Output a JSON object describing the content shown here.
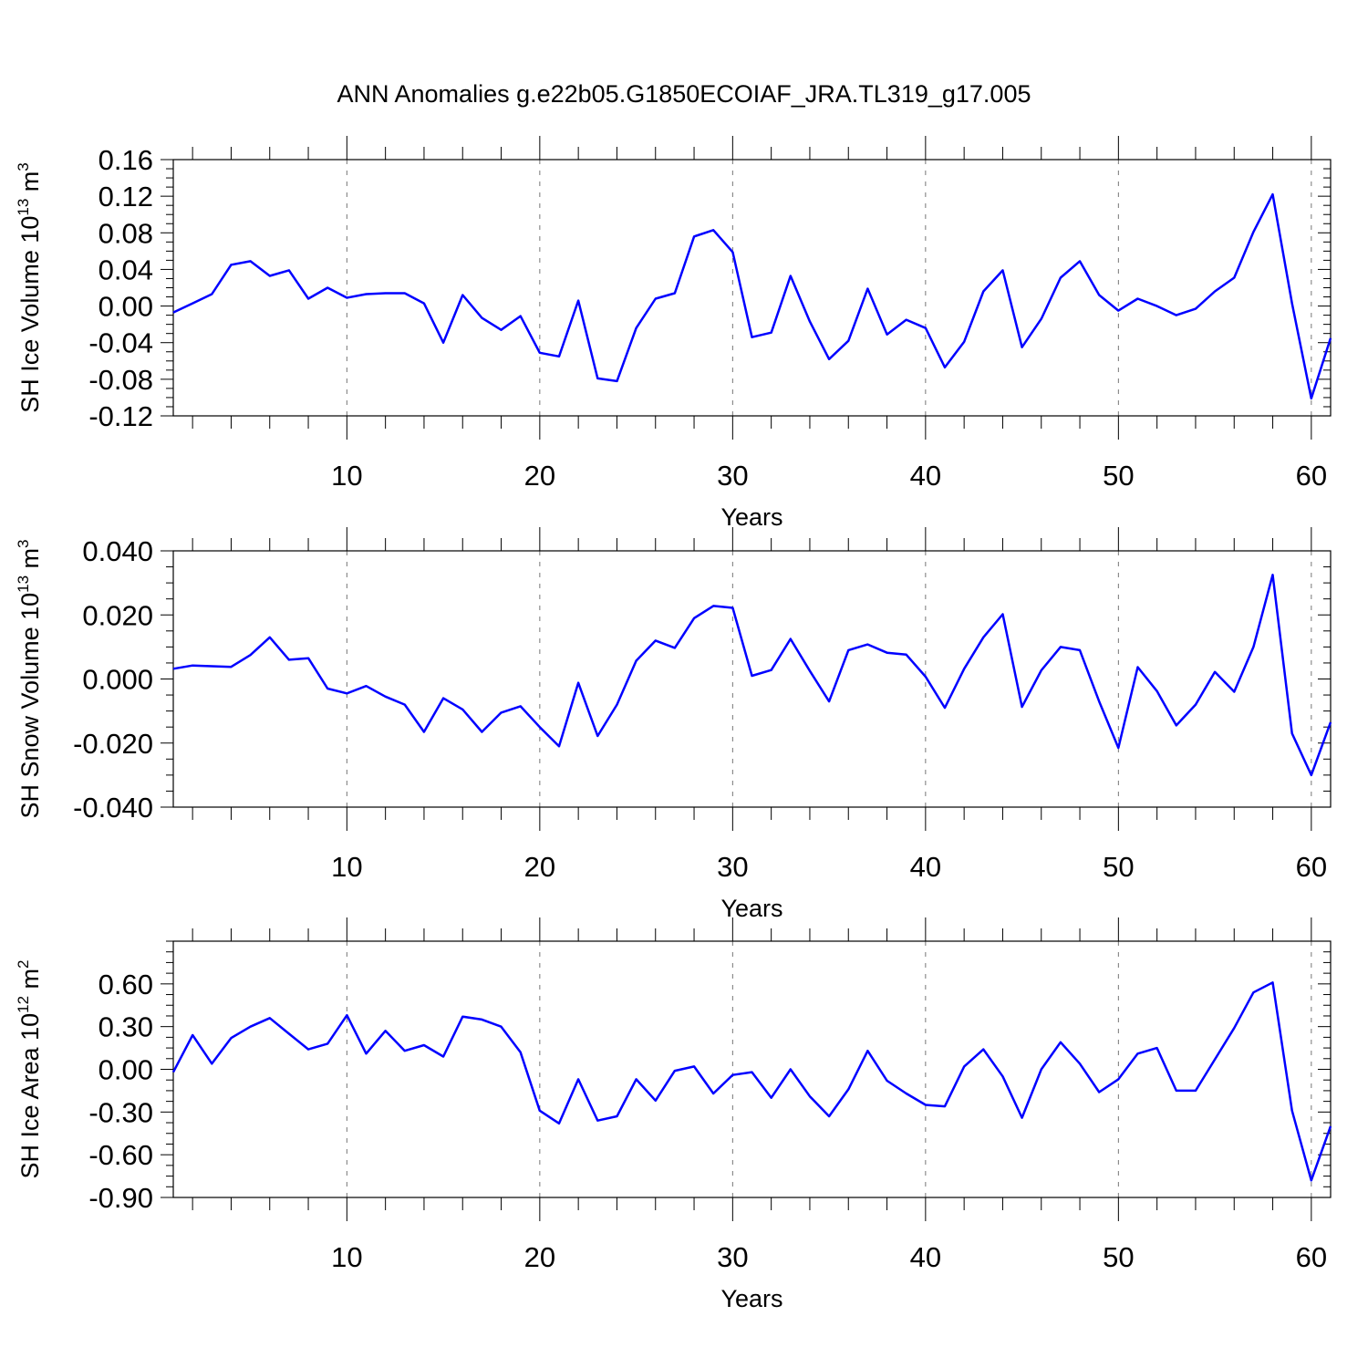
{
  "title": "ANN Anomalies g.e22b05.G1850ECOIAF_JRA.TL319_g17.005",
  "chart_data": [
    {
      "type": "line",
      "ylabel": "SH Ice Volume 10",
      "ylabel_exp": "13",
      "ylabel_unit": " m",
      "ylabel_unit_exp": "3",
      "xlabel": "Years",
      "xlim": [
        1,
        61
      ],
      "ylim": [
        -0.12,
        0.16
      ],
      "yticks": [
        -0.12,
        -0.08,
        -0.04,
        0.0,
        0.04,
        0.08,
        0.12,
        0.16
      ],
      "ytick_labels": [
        "-0.12",
        "-0.08",
        "-0.04",
        "0.00",
        "0.04",
        "0.08",
        "0.12",
        "0.16"
      ],
      "yminor_step": 0.01,
      "xticks": [
        10,
        20,
        30,
        40,
        50,
        60
      ],
      "xtick_labels": [
        "10",
        "20",
        "30",
        "40",
        "50",
        "60"
      ],
      "grid": "vertical dashed at major x ticks",
      "color": "#0000ff",
      "x": [
        1,
        2,
        3,
        4,
        5,
        6,
        7,
        8,
        9,
        10,
        11,
        12,
        13,
        14,
        15,
        16,
        17,
        18,
        19,
        20,
        21,
        22,
        23,
        24,
        25,
        26,
        27,
        28,
        29,
        30,
        31,
        32,
        33,
        34,
        35,
        36,
        37,
        38,
        39,
        40,
        41,
        42,
        43,
        44,
        45,
        46,
        47,
        48,
        49,
        50,
        51,
        52,
        53,
        54,
        55,
        56,
        57,
        58,
        59,
        60,
        61
      ],
      "values": [
        -0.007,
        0.003,
        0.013,
        0.045,
        0.049,
        0.033,
        0.039,
        0.008,
        0.02,
        0.009,
        0.013,
        0.014,
        0.014,
        0.003,
        -0.04,
        0.012,
        -0.013,
        -0.026,
        -0.011,
        -0.051,
        -0.055,
        0.006,
        -0.079,
        -0.082,
        -0.024,
        0.008,
        0.014,
        0.076,
        0.083,
        0.059,
        -0.034,
        -0.029,
        0.033,
        -0.017,
        -0.058,
        -0.038,
        0.019,
        -0.031,
        -0.015,
        -0.024,
        -0.067,
        -0.039,
        0.016,
        0.039,
        -0.045,
        -0.014,
        0.031,
        0.049,
        0.012,
        -0.005,
        0.008,
        0.0,
        -0.01,
        -0.003,
        0.016,
        0.031,
        0.081,
        0.122,
        0.003,
        -0.101,
        -0.035
      ]
    },
    {
      "type": "line",
      "ylabel": "SH Snow Volume 10",
      "ylabel_exp": "13",
      "ylabel_unit": " m",
      "ylabel_unit_exp": "3",
      "xlabel": "Years",
      "xlim": [
        1,
        61
      ],
      "ylim": [
        -0.04,
        0.04
      ],
      "yticks": [
        -0.04,
        -0.02,
        0.0,
        0.02,
        0.04
      ],
      "ytick_labels": [
        "-0.040",
        "-0.020",
        "0.000",
        "0.020",
        "0.040"
      ],
      "yminor_step": 0.005,
      "xticks": [
        10,
        20,
        30,
        40,
        50,
        60
      ],
      "xtick_labels": [
        "10",
        "20",
        "30",
        "40",
        "50",
        "60"
      ],
      "grid": "vertical dashed at major x ticks",
      "color": "#0000ff",
      "x": [
        1,
        2,
        3,
        4,
        5,
        6,
        7,
        8,
        9,
        10,
        11,
        12,
        13,
        14,
        15,
        16,
        17,
        18,
        19,
        20,
        21,
        22,
        23,
        24,
        25,
        26,
        27,
        28,
        29,
        30,
        31,
        32,
        33,
        34,
        35,
        36,
        37,
        38,
        39,
        40,
        41,
        42,
        43,
        44,
        45,
        46,
        47,
        48,
        49,
        50,
        51,
        52,
        53,
        54,
        55,
        56,
        57,
        58,
        59,
        60,
        61
      ],
      "values": [
        0.0032,
        0.0042,
        0.004,
        0.0038,
        0.0075,
        0.013,
        0.006,
        0.0065,
        -0.003,
        -0.0045,
        -0.0022,
        -0.0055,
        -0.008,
        -0.0165,
        -0.006,
        -0.0095,
        -0.0165,
        -0.0105,
        -0.0085,
        -0.015,
        -0.021,
        -0.0012,
        -0.0178,
        -0.008,
        0.0057,
        0.012,
        0.0097,
        0.019,
        0.0228,
        0.0222,
        0.001,
        0.0028,
        0.0125,
        0.0025,
        -0.007,
        0.009,
        0.0108,
        0.0082,
        0.0076,
        0.0007,
        -0.009,
        0.0032,
        0.013,
        0.0202,
        -0.0087,
        0.0027,
        0.01,
        0.009,
        -0.007,
        -0.0215,
        0.0037,
        -0.0038,
        -0.0145,
        -0.008,
        0.0022,
        -0.004,
        0.01,
        0.0325,
        -0.017,
        -0.03,
        -0.0135
      ]
    },
    {
      "type": "line",
      "ylabel": "SH Ice Area 10",
      "ylabel_exp": "12",
      "ylabel_unit": " m",
      "ylabel_unit_exp": "2",
      "xlabel": "Years",
      "xlim": [
        1,
        61
      ],
      "ylim": [
        -0.9,
        0.9
      ],
      "yticks": [
        -0.9,
        -0.6,
        -0.3,
        0.0,
        0.3,
        0.6
      ],
      "ytick_labels": [
        "-0.90",
        "-0.60",
        "-0.30",
        "0.00",
        "0.30",
        "0.60"
      ],
      "yminor_step": 0.075,
      "xticks": [
        10,
        20,
        30,
        40,
        50,
        60
      ],
      "xtick_labels": [
        "10",
        "20",
        "30",
        "40",
        "50",
        "60"
      ],
      "grid": "vertical dashed at major x ticks",
      "color": "#0000ff",
      "x": [
        1,
        2,
        3,
        4,
        5,
        6,
        7,
        8,
        9,
        10,
        11,
        12,
        13,
        14,
        15,
        16,
        17,
        18,
        19,
        20,
        21,
        22,
        23,
        24,
        25,
        26,
        27,
        28,
        29,
        30,
        31,
        32,
        33,
        34,
        35,
        36,
        37,
        38,
        39,
        40,
        41,
        42,
        43,
        44,
        45,
        46,
        47,
        48,
        49,
        50,
        51,
        52,
        53,
        54,
        55,
        56,
        57,
        58,
        59,
        60,
        61
      ],
      "values": [
        -0.02,
        0.24,
        0.04,
        0.22,
        0.3,
        0.36,
        0.25,
        0.14,
        0.18,
        0.38,
        0.11,
        0.27,
        0.13,
        0.17,
        0.09,
        0.37,
        0.35,
        0.3,
        0.12,
        -0.29,
        -0.38,
        -0.07,
        -0.36,
        -0.33,
        -0.07,
        -0.22,
        -0.01,
        0.02,
        -0.17,
        -0.04,
        -0.02,
        -0.2,
        0.0,
        -0.19,
        -0.33,
        -0.14,
        0.13,
        -0.08,
        -0.17,
        -0.25,
        -0.26,
        0.02,
        0.14,
        -0.05,
        -0.34,
        0.0,
        0.19,
        0.04,
        -0.16,
        -0.07,
        0.11,
        0.15,
        -0.15,
        -0.15,
        0.07,
        0.29,
        0.54,
        0.61,
        -0.29,
        -0.78,
        -0.4
      ]
    }
  ]
}
